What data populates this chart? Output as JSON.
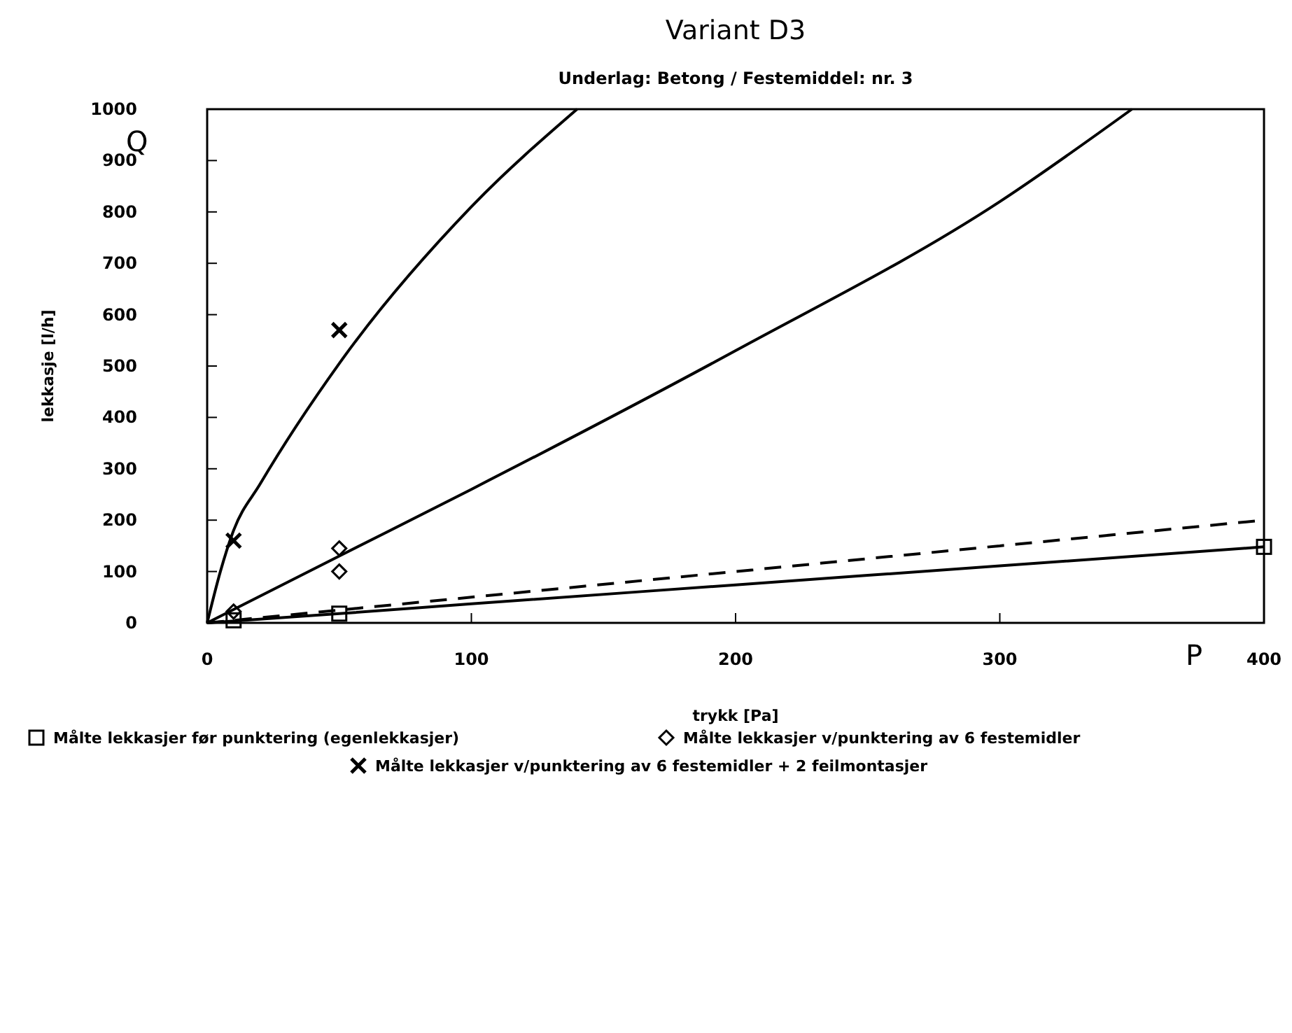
{
  "chart_data": {
    "type": "line",
    "title": "Variant D3",
    "subtitle": "Underlag: Betong / Festemiddel: nr. 3",
    "xlabel": "trykk [Pa]",
    "ylabel": "lekkasje [l/h]",
    "annotations": [
      "Q",
      "P"
    ],
    "xlim": [
      0,
      400
    ],
    "xticks": [
      0,
      100,
      200,
      300,
      400
    ],
    "ylim": [
      0,
      1000
    ],
    "yticks": [
      0,
      100,
      200,
      300,
      400,
      500,
      600,
      700,
      800,
      900,
      1000
    ],
    "grid": false,
    "legend": "bottom",
    "series": [
      {
        "color": "#000000",
        "marker": "none",
        "line_style": "solid",
        "x": [
          0,
          5,
          10,
          20,
          50,
          100,
          140
        ],
        "values": [
          0,
          100,
          180,
          270,
          505,
          810,
          1000
        ]
      },
      {
        "color": "#000000",
        "marker": "none",
        "line_style": "solid",
        "x": [
          0,
          50,
          100,
          200,
          300,
          350
        ],
        "values": [
          0,
          130,
          260,
          530,
          820,
          1000
        ]
      },
      {
        "color": "#000000",
        "marker": "none",
        "line_style": "dashed",
        "x": [
          0,
          100,
          200,
          300,
          400
        ],
        "values": [
          0,
          50,
          100,
          150,
          200
        ]
      },
      {
        "color": "#000000",
        "marker": "none",
        "line_style": "solid",
        "x": [
          0,
          50,
          100,
          200,
          300,
          400
        ],
        "values": [
          0,
          18,
          37,
          74,
          111,
          148
        ]
      },
      {
        "type": "scatter",
        "name": "Målte lekkasjer før punktering (egenlekkasjer)",
        "color": "#000000",
        "marker": "square",
        "x": [
          10,
          50,
          400
        ],
        "values": [
          5,
          18,
          148
        ]
      },
      {
        "type": "scatter",
        "name": "Målte lekkasjer v/punktering av 6 festemidler",
        "color": "#000000",
        "marker": "diamond",
        "x": [
          10,
          50,
          50
        ],
        "values": [
          22,
          100,
          145
        ]
      },
      {
        "type": "scatter",
        "name": "Målte lekkasjer v/punktering av 6 festemidler + 2 feilmontasjer",
        "color": "#000000",
        "marker": "cross",
        "x": [
          10,
          50
        ],
        "values": [
          160,
          570
        ]
      }
    ]
  }
}
